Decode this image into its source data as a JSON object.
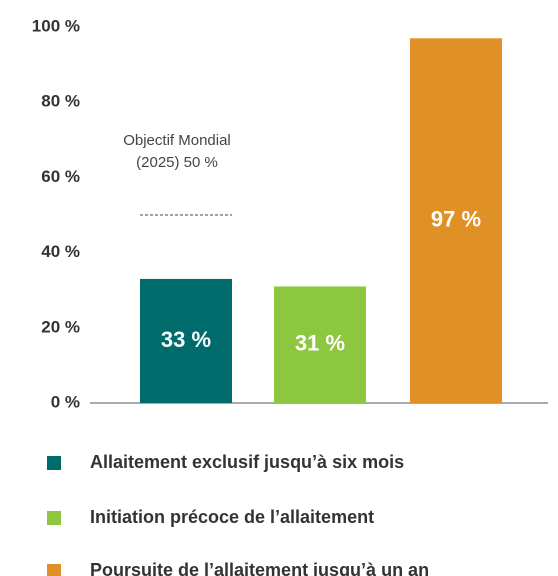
{
  "chart_data": {
    "type": "bar",
    "categories": [
      "Allaitement exclusif jusqu’à six mois",
      "Initiation précoce de l’allaitement",
      "Poursuite de l’allaitement jusqu’à un an"
    ],
    "values": [
      33,
      31,
      97
    ],
    "value_labels": [
      "33 %",
      "31 %",
      "97 %"
    ],
    "colors": [
      "#006b6b",
      "#8dc63f",
      "#e09126"
    ],
    "ylim": [
      0,
      100
    ],
    "yticks": [
      {
        "value": 0,
        "label": "0 %"
      },
      {
        "value": 20,
        "label": "20 %"
      },
      {
        "value": 40,
        "label": "40 %"
      },
      {
        "value": 60,
        "label": "60 %"
      },
      {
        "value": 80,
        "label": "80 %"
      },
      {
        "value": 100,
        "label": "100 %"
      }
    ],
    "annotation": {
      "lines": [
        "Objectif Mondial",
        "(2025) 50 %"
      ],
      "value": 50
    },
    "legend": "bottom"
  }
}
